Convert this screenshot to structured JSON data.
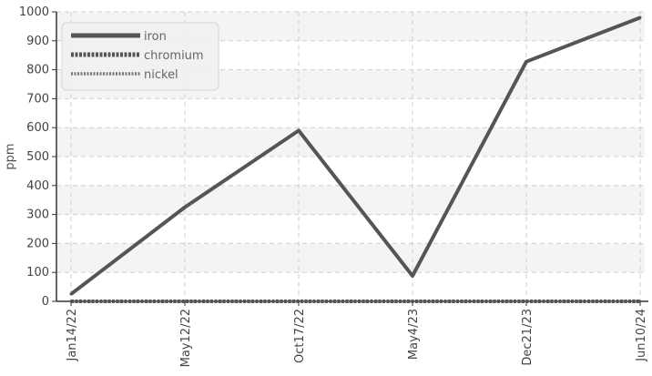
{
  "chart_data": {
    "type": "line",
    "title": "",
    "xlabel": "",
    "ylabel": "ppm",
    "categories": [
      "Jan14/22",
      "May12/22",
      "Oct17/22",
      "May4/23",
      "Dec21/23",
      "Jun10/24"
    ],
    "ylim": [
      0,
      1000
    ],
    "yticks": [
      0,
      100,
      200,
      300,
      400,
      500,
      600,
      700,
      800,
      900,
      1000
    ],
    "grid": true,
    "legend_position": "top-left",
    "series": [
      {
        "name": "iron",
        "values": [
          25,
          325,
          590,
          88,
          828,
          980
        ],
        "color": "#555555",
        "style": "solid"
      },
      {
        "name": "chromium",
        "values": [
          0,
          0,
          0,
          0,
          0,
          0
        ],
        "color": "#555555",
        "style": "dashed"
      },
      {
        "name": "nickel",
        "values": [
          0,
          0,
          0,
          0,
          0,
          0
        ],
        "color": "#777777",
        "style": "dotted"
      }
    ]
  }
}
